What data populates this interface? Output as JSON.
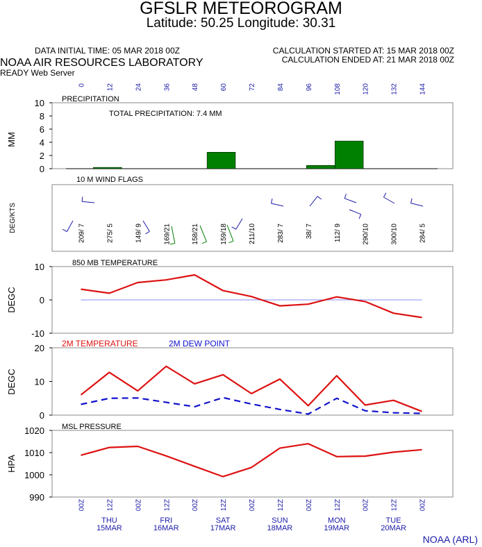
{
  "header": {
    "title": "GFSLR METEOROGRAM",
    "subtitle": "Latitude: 50.25 Longitude:  30.31",
    "data_initial_time": "DATA INITIAL TIME: 05 MAR 2018 00Z",
    "calc_started": "CALCULATION STARTED AT: 15 MAR 2018 00Z",
    "calc_ended": "CALCULATION ENDED AT: 21 MAR 2018 00Z",
    "lab": "NOAA AIR RESOURCES LABORATORY",
    "server": "READY Web Server",
    "credit": "NOAA (ARL)"
  },
  "colors": {
    "frame": "#888888",
    "tick_blue": "#1a1aa8",
    "precip_bar": "#008000",
    "temp_red": "#dd1111",
    "dew_blue": "#1111cc",
    "zero_line": "#8888ff",
    "wind_blue": "#1a1aa8",
    "wind_green": "#008000"
  },
  "chart_data": [
    {
      "type": "bar",
      "title": "PRECIPITATION",
      "annotation": "TOTAL PRECIPITATION:   7.4 MM",
      "ylabel": "MM",
      "ylim": [
        0,
        10
      ],
      "yticks": [
        0,
        2,
        4,
        6,
        8,
        10
      ],
      "forecast_hours": [
        0,
        12,
        24,
        36,
        48,
        60,
        72,
        84,
        96,
        108,
        120,
        132,
        144
      ],
      "bars": [
        {
          "start": 12,
          "end": 24,
          "value": 0.2
        },
        {
          "start": 60,
          "end": 72,
          "value": 2.5
        },
        {
          "start": 102,
          "end": 114,
          "value": 0.5
        },
        {
          "start": 114,
          "end": 126,
          "value": 4.2
        }
      ]
    },
    {
      "type": "other",
      "title": "10 M  WIND FLAGS",
      "ylabel": "DEG/KTS",
      "labels": [
        "209/ 7",
        "275/ 5",
        "149/ 9",
        "169/21",
        "158/21",
        "159/18",
        "211/10",
        "283/ 7",
        "38/ 7",
        "112/ 9",
        "290/10",
        "300/10",
        "284/ 5"
      ]
    },
    {
      "type": "line",
      "title": "850 MB  TEMPERATURE",
      "ylabel": "DEGC",
      "ylim": [
        -10,
        10
      ],
      "yticks": [
        -10,
        0,
        10
      ],
      "x": [
        0,
        12,
        24,
        36,
        48,
        60,
        72,
        84,
        96,
        108,
        120,
        132,
        144
      ],
      "series": [
        {
          "values": [
            3.2,
            2.0,
            5.2,
            6.0,
            7.5,
            2.8,
            1.0,
            -1.8,
            -1.3,
            0.9,
            -0.5,
            -4.0,
            -5.3
          ]
        }
      ]
    },
    {
      "type": "line",
      "ylabel": "DEGC",
      "ylim": [
        0,
        20
      ],
      "yticks": [
        0,
        10,
        20
      ],
      "x": [
        0,
        12,
        24,
        36,
        48,
        60,
        72,
        84,
        96,
        108,
        120,
        132,
        144
      ],
      "series": [
        {
          "name": "2M TEMPERATURE",
          "values": [
            6.0,
            12.7,
            7.2,
            14.5,
            9.3,
            12.0,
            6.4,
            10.7,
            2.8,
            11.7,
            3.0,
            4.4,
            1.1
          ]
        },
        {
          "name": "2M  DEW POINT",
          "values": [
            3.2,
            5.0,
            5.1,
            3.8,
            2.5,
            5.2,
            3.3,
            1.7,
            0.3,
            5.0,
            1.3,
            0.7,
            0.5
          ]
        }
      ]
    },
    {
      "type": "line",
      "title": "MSL PRESSURE",
      "ylabel": "HPA",
      "ylim": [
        990,
        1020
      ],
      "yticks": [
        990,
        1000,
        1010,
        1020
      ],
      "x": [
        0,
        12,
        24,
        36,
        48,
        60,
        72,
        84,
        96,
        108,
        120,
        132,
        144
      ],
      "series": [
        {
          "values": [
            1008.8,
            1012.3,
            1012.8,
            1008.5,
            1003.8,
            999.2,
            1003.3,
            1012.0,
            1014.0,
            1008.2,
            1008.4,
            1010.2,
            1011.3
          ]
        }
      ]
    }
  ],
  "time_axis": {
    "hour_labels": [
      "00Z",
      "12Z",
      "00Z",
      "12Z",
      "00Z",
      "12Z",
      "00Z",
      "12Z",
      "00Z",
      "12Z",
      "00Z",
      "12Z",
      "00Z"
    ],
    "days": [
      {
        "day": "THU",
        "date": "15MAR"
      },
      {
        "day": "FRI",
        "date": "16MAR"
      },
      {
        "day": "SAT",
        "date": "17MAR"
      },
      {
        "day": "SUN",
        "date": "18MAR"
      },
      {
        "day": "MON",
        "date": "19MAR"
      },
      {
        "day": "TUE",
        "date": "20MAR"
      }
    ]
  }
}
